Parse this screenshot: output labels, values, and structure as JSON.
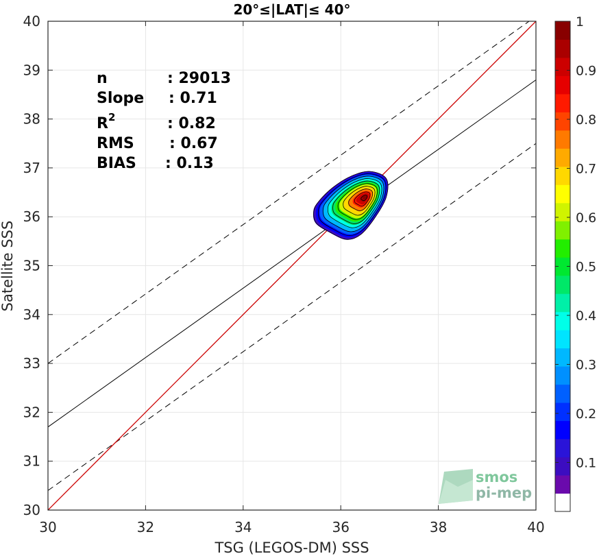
{
  "chart_data": {
    "type": "heatmap",
    "title": "20°≤|LAT|≤ 40°",
    "xlabel": "TSG (LEGOS-DM) SSS",
    "ylabel": "Satellite SSS",
    "xlim": [
      30,
      40
    ],
    "ylim": [
      30,
      40
    ],
    "x_ticks": [
      "30",
      "32",
      "34",
      "36",
      "38",
      "40"
    ],
    "y_ticks": [
      "30",
      "31",
      "32",
      "33",
      "34",
      "35",
      "36",
      "37",
      "38",
      "39",
      "40"
    ],
    "grid": true,
    "stats": [
      {
        "label": "n",
        "sep": ": ",
        "value": "29013"
      },
      {
        "label": "Slope",
        "sep": ": ",
        "value": "0.71"
      },
      {
        "label": "R",
        "sup": "2",
        "sep": ": ",
        "value": "0.82"
      },
      {
        "label": "RMS",
        "sep": ": ",
        "value": "0.67"
      },
      {
        "label": "BIAS",
        "sep": ": ",
        "value": "0.13"
      }
    ],
    "identity_line": {
      "color": "#cc0000",
      "from": [
        30,
        30
      ],
      "to": [
        40,
        40
      ]
    },
    "fit_line": {
      "slope": 0.71,
      "intercept": 10.4,
      "color": "#000000"
    },
    "fit_bounds_dashed": [
      {
        "slope": 0.71,
        "intercept": 11.7
      },
      {
        "slope": 0.71,
        "intercept": 9.1
      }
    ],
    "density_peak": {
      "x": 36.45,
      "y": 36.4,
      "value": 1.0
    },
    "colorbar": {
      "range": [
        0,
        1
      ],
      "ticks": [
        "0.1",
        "0.2",
        "0.3",
        "0.4",
        "0.5",
        "0.6",
        "0.7",
        "0.8",
        "0.9",
        "1"
      ],
      "tick_values": [
        0.1,
        0.2,
        0.3,
        0.4,
        0.5,
        0.6,
        0.7,
        0.8,
        0.9,
        1.0
      ],
      "bands": [
        "#ffffff",
        "#6a0aac",
        "#3c0dc0",
        "#2a14d8",
        "#0000ff",
        "#0030ff",
        "#0060ff",
        "#0090ff",
        "#00b8ff",
        "#00e4ff",
        "#00ffe8",
        "#00f0a8",
        "#00e868",
        "#00e830",
        "#22ee00",
        "#80f000",
        "#d0f400",
        "#ffff00",
        "#ffd800",
        "#ffaa00",
        "#ff7a00",
        "#ff4400",
        "#ff1a00",
        "#e60000",
        "#cc0000",
        "#aa0000",
        "#880000"
      ]
    },
    "contour_levels": [
      0.05,
      0.15,
      0.25,
      0.35,
      0.45,
      0.55,
      0.65,
      0.75,
      0.85,
      0.95
    ]
  },
  "logo": {
    "line1": "smos",
    "line2": "pi-mep"
  }
}
